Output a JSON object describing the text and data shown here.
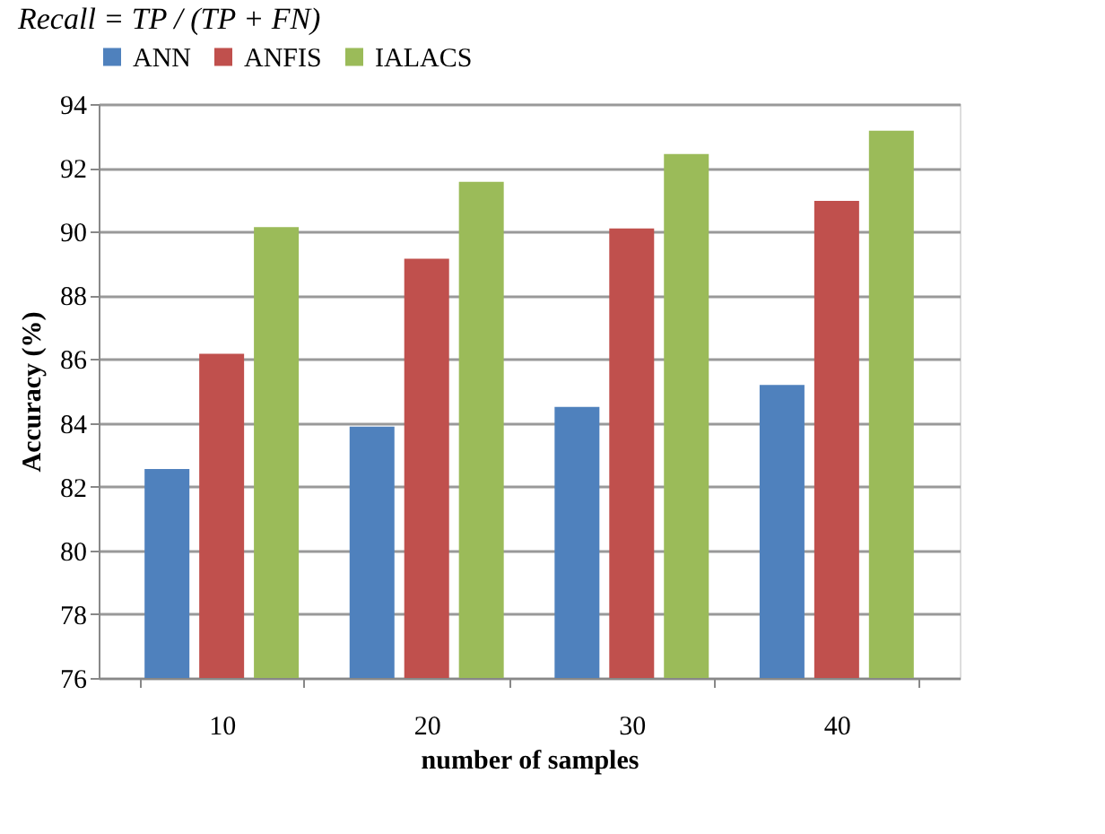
{
  "chart_data": {
    "type": "bar",
    "categories": [
      "10",
      "20",
      "30",
      "40"
    ],
    "series": [
      {
        "name": "ANN",
        "color": "#4f81bd",
        "values": [
          82.55,
          83.88,
          84.5,
          85.19
        ]
      },
      {
        "name": "ANFIS",
        "color": "#c0504d",
        "values": [
          86.17,
          89.15,
          90.1,
          90.96
        ]
      },
      {
        "name": "IALACS",
        "color": "#9bbb59",
        "values": [
          90.14,
          91.56,
          92.43,
          93.16
        ]
      }
    ],
    "xlabel": "number of samples",
    "ylabel": "Accuracy  (%)",
    "ylim": [
      76,
      94
    ],
    "yticks": [
      76,
      78,
      80,
      82,
      84,
      86,
      88,
      90,
      92,
      94
    ],
    "grid": "y",
    "legend": "top",
    "annotations": [
      "Recall = TP / (TP + FN)"
    ]
  }
}
